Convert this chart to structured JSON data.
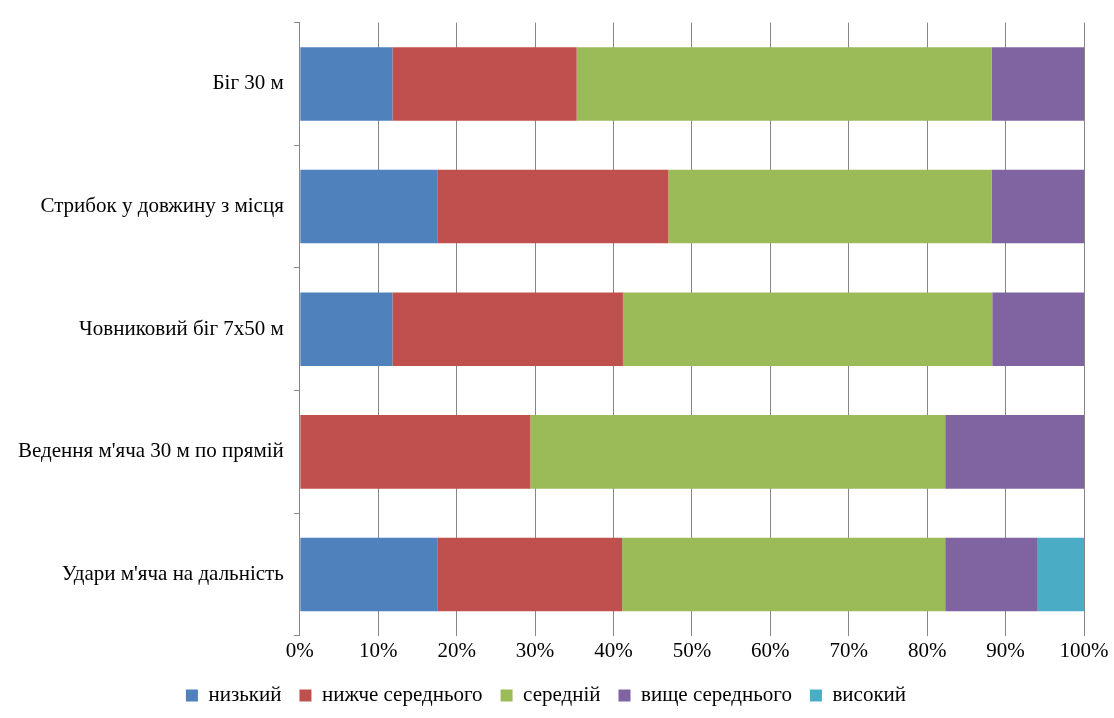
{
  "chart_data": {
    "type": "bar",
    "orientation": "horizontal",
    "stacked": true,
    "categories": [
      "Біг 30 м",
      "Стрибок у довжину з місця",
      "Човниковий біг 7х50 м",
      "Ведення м'яча 30 м по прямій",
      "Удари м'яча на дальність"
    ],
    "series": [
      {
        "name": "низький",
        "color": "#4f81bd",
        "values": [
          11.8,
          17.6,
          11.8,
          0,
          17.6
        ]
      },
      {
        "name": "нижче середнього",
        "color": "#c0504d",
        "values": [
          23.5,
          29.4,
          29.4,
          29.4,
          23.5
        ]
      },
      {
        "name": "середній",
        "color": "#9bbb59",
        "values": [
          52.9,
          41.2,
          47.1,
          52.9,
          41.2
        ]
      },
      {
        "name": "вище середнього",
        "color": "#8064a2",
        "values": [
          11.8,
          11.8,
          11.8,
          17.7,
          11.8
        ]
      },
      {
        "name": "високий",
        "color": "#4bacc6",
        "values": [
          0,
          0,
          0,
          0,
          5.9
        ]
      }
    ],
    "xlim": [
      0,
      100
    ],
    "xticks": [
      {
        "value": 0,
        "label": "0%"
      },
      {
        "value": 10,
        "label": "10%"
      },
      {
        "value": 20,
        "label": "20%"
      },
      {
        "value": 30,
        "label": "30%"
      },
      {
        "value": 40,
        "label": "40%"
      },
      {
        "value": 50,
        "label": "50%"
      },
      {
        "value": 60,
        "label": "60%"
      },
      {
        "value": 70,
        "label": "70%"
      },
      {
        "value": 80,
        "label": "80%"
      },
      {
        "value": 90,
        "label": "90%"
      },
      {
        "value": 100,
        "label": "100%"
      }
    ],
    "grid": "x",
    "legend": "bottom"
  }
}
